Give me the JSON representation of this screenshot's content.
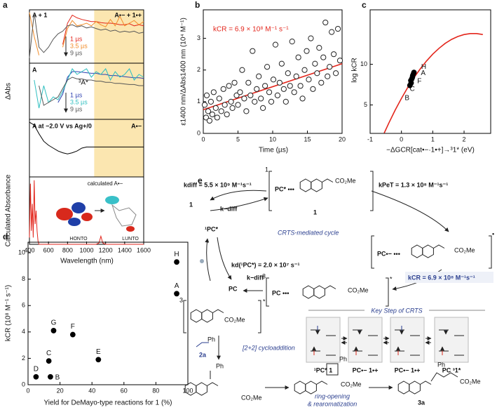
{
  "chart_data": [
    {
      "type": "line",
      "panel_label": "a",
      "label": "A + 1",
      "label_right": "A•− + 1•+",
      "x": [
        400,
        450,
        500,
        550,
        600,
        650,
        700,
        750,
        800,
        850,
        900,
        950,
        1000,
        1050,
        1100,
        1150,
        1200,
        1250,
        1300,
        1350,
        1400,
        1450,
        1500,
        1550,
        1600
      ],
      "xlim": [
        400,
        1600
      ],
      "ylim": [
        0,
        1
      ],
      "highlight_range": [
        1080,
        1600
      ],
      "highlight_color": "#fbe6b0",
      "series": [
        {
          "name": "1 µs",
          "color": "#e3261c",
          "values": [
            null,
            null,
            null,
            null,
            null,
            null,
            null,
            0.35,
            0.75,
            0.9,
            0.85,
            0.82,
            0.8,
            0.78,
            0.78,
            0.76,
            0.75,
            0.75,
            0.74,
            0.72,
            0.72,
            0.74,
            0.7,
            0.72,
            0.7
          ]
        },
        {
          "name": "3.5 µs",
          "color": "#f28c28",
          "values": [
            0.95,
            0.5,
            0.15,
            null,
            null,
            null,
            null,
            0.3,
            0.65,
            0.8,
            0.7,
            0.72,
            0.75,
            0.7,
            0.78,
            0.72,
            0.68,
            0.82,
            0.7,
            0.88,
            0.7,
            0.75,
            0.8,
            0.72,
            0.78
          ]
        },
        {
          "name": "9 µs",
          "color": "#555555",
          "values": [
            0.1,
            0.95,
            0.3,
            0.2,
            0.3,
            0.45,
            0.55,
            0.6,
            0.7,
            0.72,
            0.68,
            0.7,
            0.66,
            0.68,
            0.65,
            0.62,
            0.64,
            0.6,
            0.62,
            0.58,
            0.6,
            0.58,
            0.6,
            0.56,
            0.58
          ]
        }
      ]
    },
    {
      "type": "line",
      "label": "A",
      "annotation": "³A*",
      "y_label": "ΔAbs",
      "x": [
        400,
        450,
        500,
        550,
        600,
        650,
        700,
        750,
        800,
        850,
        900,
        950,
        1000,
        1050,
        1100,
        1150,
        1200,
        1250,
        1300,
        1350,
        1400,
        1450,
        1500,
        1550,
        1600
      ],
      "xlim": [
        400,
        1600
      ],
      "ylim": [
        0,
        1
      ],
      "highlight_range": [
        1080,
        1600
      ],
      "highlight_color": "#fbe6b0",
      "series": [
        {
          "name": "1 µs",
          "color": "#2c3fb0",
          "values": [
            null,
            null,
            null,
            null,
            null,
            null,
            0.3,
            0.45,
            0.75,
            0.85,
            0.85,
            0.84,
            0.83,
            0.82,
            0.82,
            0.8,
            0.8,
            0.78,
            0.78,
            0.77,
            0.76,
            0.75,
            0.74,
            0.74,
            0.73
          ]
        },
        {
          "name": "3.5 µs",
          "color": "#2fbfc0",
          "values": [
            null,
            0.7,
            0.2,
            0.6,
            0.3,
            0.4,
            0.35,
            0.5,
            0.7,
            0.9,
            0.8,
            0.85,
            0.9,
            0.75,
            0.85,
            0.8,
            0.9,
            0.7,
            0.85,
            0.75,
            0.8,
            0.9,
            0.7,
            0.8,
            0.75
          ]
        },
        {
          "name": "9 µs",
          "color": "#555555",
          "values": [
            null,
            null,
            0.6,
            0.25,
            0.3,
            0.35,
            0.4,
            0.55,
            0.7,
            0.75,
            0.72,
            0.72,
            0.7,
            0.7,
            0.68,
            0.68,
            0.66,
            0.66,
            0.64,
            0.64,
            0.63,
            0.62,
            0.62,
            0.6,
            0.6
          ]
        }
      ]
    },
    {
      "type": "line",
      "label": "A at −2.0 V vs Ag+/0",
      "label_right": "A•−",
      "x": [
        400,
        450,
        500,
        550,
        600,
        650,
        700,
        750,
        800,
        850,
        900,
        950,
        1000,
        1050,
        1100,
        1150,
        1200,
        1250,
        1300,
        1350,
        1400,
        1450,
        1500,
        1550,
        1600
      ],
      "xlim": [
        400,
        1600
      ],
      "ylim": [
        0,
        1
      ],
      "highlight_range": [
        1080,
        1600
      ],
      "highlight_color": "#fbe6b0",
      "color": "#000000",
      "values": [
        0.95,
        0.9,
        0.75,
        0.62,
        0.55,
        0.5,
        0.45,
        0.42,
        0.4,
        0.42,
        0.45,
        0.5,
        0.52,
        0.52,
        0.52,
        0.52,
        0.52,
        0.52,
        0.52,
        0.52,
        0.52,
        0.52,
        0.52,
        0.52,
        0.52
      ]
    },
    {
      "type": "line",
      "y_label": "Calculated Absorbance",
      "x_label": "Wavelength (nm)",
      "inset_title": "calculated A•−",
      "inset_labels": [
        "HONTO",
        "LUNTO"
      ],
      "x": [
        400,
        410,
        420,
        430,
        440,
        450,
        460,
        470,
        480,
        490,
        500,
        550,
        600,
        700,
        800,
        900,
        1000,
        1100,
        1130,
        1150,
        1170,
        1200,
        1300,
        1400,
        1500,
        1600
      ],
      "xlim": [
        400,
        1600
      ],
      "ylim": [
        0,
        1
      ],
      "xticks": [
        400,
        600,
        800,
        1000,
        1200,
        1400,
        1600
      ],
      "color": "#e3261c",
      "values": [
        0.1,
        0.9,
        0.2,
        0.6,
        0.1,
        0.95,
        0.3,
        0.5,
        0.2,
        0.05,
        0,
        0,
        0,
        0,
        0,
        0,
        0,
        0,
        0.02,
        0.12,
        0.02,
        0,
        0,
        0,
        0,
        0
      ]
    },
    {
      "type": "scatter",
      "panel_label": "b",
      "annotation": "kCR = 6.9 × 10⁸ M⁻¹ s⁻¹",
      "y_label": "ε1400 nm/ΔAbs1400 nm (10⁴ M⁻¹)",
      "x_label": "Time (µs)",
      "xlim": [
        0,
        20
      ],
      "ylim": [
        0,
        3.9
      ],
      "xticks": [
        0,
        5,
        10,
        15,
        20
      ],
      "yticks": [
        0,
        1,
        2,
        3
      ],
      "marker_fill": "#ffffff",
      "marker_stroke": "#222222",
      "fit_color": "#e3261c",
      "x": [
        0.2,
        0.4,
        0.5,
        0.7,
        0.9,
        1.1,
        1.3,
        1.5,
        1.8,
        2.0,
        2.3,
        2.6,
        2.9,
        3.1,
        3.4,
        3.7,
        4.0,
        4.2,
        4.5,
        4.8,
        5.0,
        5.3,
        5.6,
        5.9,
        6.2,
        6.5,
        6.8,
        7.1,
        7.4,
        7.7,
        8.0,
        8.3,
        8.6,
        8.9,
        9.2,
        9.5,
        9.8,
        10.1,
        10.4,
        10.7,
        11.0,
        11.3,
        11.6,
        11.9,
        12.2,
        12.5,
        12.8,
        13.1,
        13.4,
        13.7,
        14.0,
        14.3,
        14.6,
        14.9,
        15.2,
        15.5,
        15.8,
        16.1,
        16.4,
        16.7,
        17.0,
        17.3,
        17.6,
        17.9,
        18.2,
        18.5,
        18.8,
        19.1,
        19.4,
        19.7
      ],
      "values": [
        0.9,
        0.5,
        1.2,
        0.7,
        0.4,
        1.0,
        0.6,
        1.3,
        0.8,
        0.5,
        1.1,
        0.7,
        1.4,
        0.9,
        0.6,
        1.5,
        1.0,
        0.8,
        1.6,
        1.2,
        0.9,
        1.3,
        2.0,
        1.1,
        0.7,
        1.6,
        1.2,
        2.6,
        1.0,
        1.4,
        1.8,
        1.1,
        0.8,
        1.5,
        2.1,
        1.3,
        1.0,
        1.7,
        2.8,
        1.2,
        1.6,
        2.2,
        1.4,
        1.0,
        1.9,
        1.5,
        2.9,
        1.3,
        1.8,
        2.4,
        1.5,
        1.1,
        2.0,
        2.6,
        1.7,
        3.0,
        1.4,
        2.2,
        1.9,
        2.7,
        1.6,
        2.4,
        3.5,
        1.8,
        2.1,
        3.2,
        2.5,
        1.9,
        3.3,
        2.3
      ],
      "fit": {
        "x": [
          0,
          20
        ],
        "values": [
          0.75,
          2.2
        ]
      }
    },
    {
      "type": "scatter",
      "panel_label": "c",
      "y_label": "log kCR",
      "x_label": "−ΔGCR[cat•−·1•+]→³1* (eV)",
      "xlim": [
        -1,
        2.85
      ],
      "ylim": [
        1.5,
        16.7
      ],
      "xticks": [
        -1,
        0,
        1,
        2
      ],
      "yticks": [
        5,
        10
      ],
      "marker_fill": "#000000",
      "marker_stroke": "#000000",
      "fit_color": "#e3261c",
      "x": [
        0.4,
        0.38,
        0.35,
        0.3,
        0.27,
        0.33,
        0.36,
        0.31
      ],
      "values": [
        9.0,
        8.8,
        8.4,
        8.0,
        7.4,
        8.2,
        8.6,
        7.7
      ],
      "labels": [
        "H",
        "A",
        "F",
        "C",
        "B",
        null,
        null,
        null
      ],
      "fit": {
        "x": [
          -0.55,
          -0.4,
          -0.2,
          0,
          0.2,
          0.4,
          0.6,
          0.8,
          1.0,
          1.2,
          1.4,
          1.6,
          1.8,
          2.0,
          2.2,
          2.4,
          2.6
        ],
        "values": [
          1.54,
          2.79,
          4.36,
          5.81,
          7.14,
          8.35,
          9.44,
          10.4,
          11.25,
          11.97,
          12.58,
          13.06,
          13.42,
          13.66,
          13.78,
          13.78,
          13.66
        ]
      }
    },
    {
      "type": "scatter",
      "panel_label": "d",
      "y_label": "kCR (10⁸ M⁻¹ s⁻¹)",
      "x_label": "Yield for DeMayo-type reactions for 1 (%)",
      "xlim": [
        0,
        100
      ],
      "ylim": [
        0,
        10.8
      ],
      "xticks": [
        0,
        20,
        40,
        60,
        80,
        100
      ],
      "yticks": [
        0,
        2,
        4,
        6,
        8,
        10
      ],
      "marker_fill": "#000000",
      "marker_stroke": "#000000",
      "x": [
        93,
        14,
        13,
        5,
        44,
        28,
        16,
        93
      ],
      "values": [
        6.9,
        0.6,
        1.8,
        0.6,
        1.9,
        3.8,
        4.1,
        9.3
      ],
      "labels": [
        "A",
        "B",
        "C",
        "D",
        "E",
        "F",
        "G",
        "H"
      ]
    }
  ],
  "scheme": {
    "panel_label": "e",
    "rate_diff": "kdiff = 5.5 × 10⁹ M⁻¹s⁻¹",
    "rate_pet": "kPeT = 1.3 × 10⁸ M⁻¹s⁻¹",
    "rate_d": "kd(¹PC*) = 2.0 × 10⁷ s⁻¹",
    "rate_cr": "kCR = 6.9 × 10⁸ M⁻¹s⁻¹",
    "rate_back": [
      "k−diff",
      "k−diff"
    ],
    "cycle": "CRTS-mediated cycle",
    "complex_singlet": "PC* •••",
    "complex_ip": "PC•− •••",
    "complex_triplet": "PC •••",
    "free_pc": "PC",
    "free_pc_excited": "¹PC*",
    "free_1": "1",
    "compound_1": "1",
    "bracket_marks": [
      "1",
      "•",
      "3",
      "*",
      "3",
      "*"
    ],
    "co2me": [
      "CO₂Me",
      "CO₂Me",
      "CO₂Me",
      "CO₂Me",
      "CO₂Me",
      "CO₂Me",
      "CO₂Me"
    ],
    "ph": [
      "Ph",
      "Ph",
      "Ph",
      "Ph"
    ],
    "reagent": "2a",
    "step": "[2+2] cycloaddition",
    "key_step": "Key Step of CRTS",
    "states": [
      "¹PC* 1",
      "PC•− 1•+",
      "PC•− 1•+",
      "PC ³1*"
    ],
    "ring_opening": [
      "ring-opening",
      "& rearomatization"
    ],
    "product": "3a"
  }
}
